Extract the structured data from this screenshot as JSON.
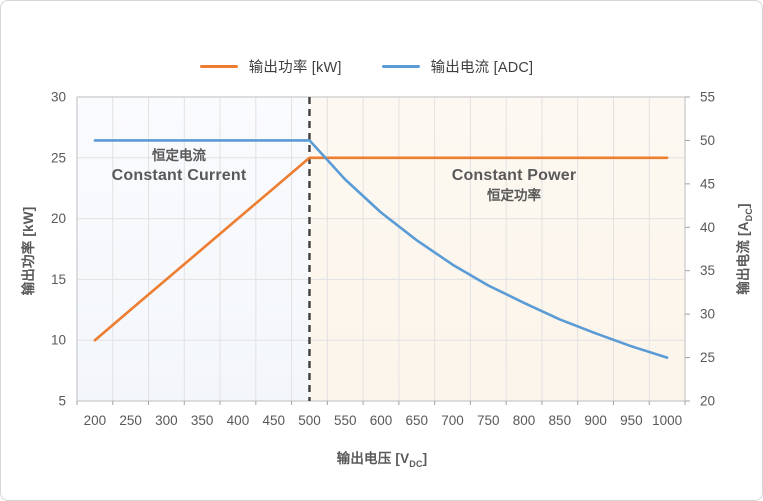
{
  "legend": [
    {
      "label": "输出功率 [kW]",
      "color": "#ED7D31"
    },
    {
      "label": "输出电流 [ADC]",
      "color": "#5B9BD5"
    }
  ],
  "axes": {
    "y_left": {
      "title": "输出功率 [kW]"
    },
    "y_right": {
      "title_main": "输出电流 [A",
      "title_sub": "DC",
      "title_end": "]"
    },
    "x": {
      "title_main": "输出电压 [V",
      "title_sub": "DC",
      "title_end": "]"
    }
  },
  "annotations": {
    "left": {
      "line1": "恒定电流",
      "line2": "Constant Current"
    },
    "right": {
      "line1": "Constant Power",
      "line2": "恒定功率"
    }
  },
  "chart_data": {
    "type": "line",
    "title": "",
    "x": [
      200,
      250,
      300,
      350,
      400,
      450,
      500,
      550,
      600,
      650,
      700,
      750,
      800,
      850,
      900,
      950,
      1000
    ],
    "x_title": "输出电压 [VDC]",
    "y_left_title": "输出功率 [kW]",
    "y_right_title": "输出电流 [ADC]",
    "y_left_range": [
      5,
      30
    ],
    "y_right_range": [
      20,
      55
    ],
    "y_left_ticks": [
      5,
      10,
      15,
      20,
      25,
      30
    ],
    "y_right_ticks": [
      20,
      25,
      30,
      35,
      40,
      45,
      50,
      55
    ],
    "grid": true,
    "legend_position": "top",
    "series": [
      {
        "name": "输出功率 [kW]",
        "axis": "left",
        "color": "#ED7D31",
        "values": [
          10,
          12.5,
          15,
          17.5,
          20,
          22.5,
          25,
          25,
          25,
          25,
          25,
          25,
          25,
          25,
          25,
          25,
          25
        ]
      },
      {
        "name": "输出电流 [ADC]",
        "axis": "right",
        "color": "#5B9BD5",
        "values": [
          50,
          50,
          50,
          50,
          50,
          50,
          50,
          45.5,
          41.7,
          38.5,
          35.7,
          33.3,
          31.3,
          29.4,
          27.8,
          26.3,
          25
        ]
      }
    ],
    "vline": {
      "x": 500,
      "style": "dashed",
      "color": "#3E3E3E"
    },
    "regions": [
      {
        "label": "constant-current",
        "from": 200,
        "to": 500,
        "color_top": "#FAFBFE",
        "color_bottom": "#F3F6FB"
      },
      {
        "label": "constant-power",
        "from": 500,
        "to": 1000,
        "color_top": "#FDF9F2",
        "color_bottom": "#FBF4EA"
      }
    ],
    "style": {
      "grid_color": "#E2E2E2",
      "border_color": "#C9C9C9",
      "tick_color": "#A3A3A3",
      "label_color": "#595959",
      "label_font_size": 13.5
    }
  }
}
